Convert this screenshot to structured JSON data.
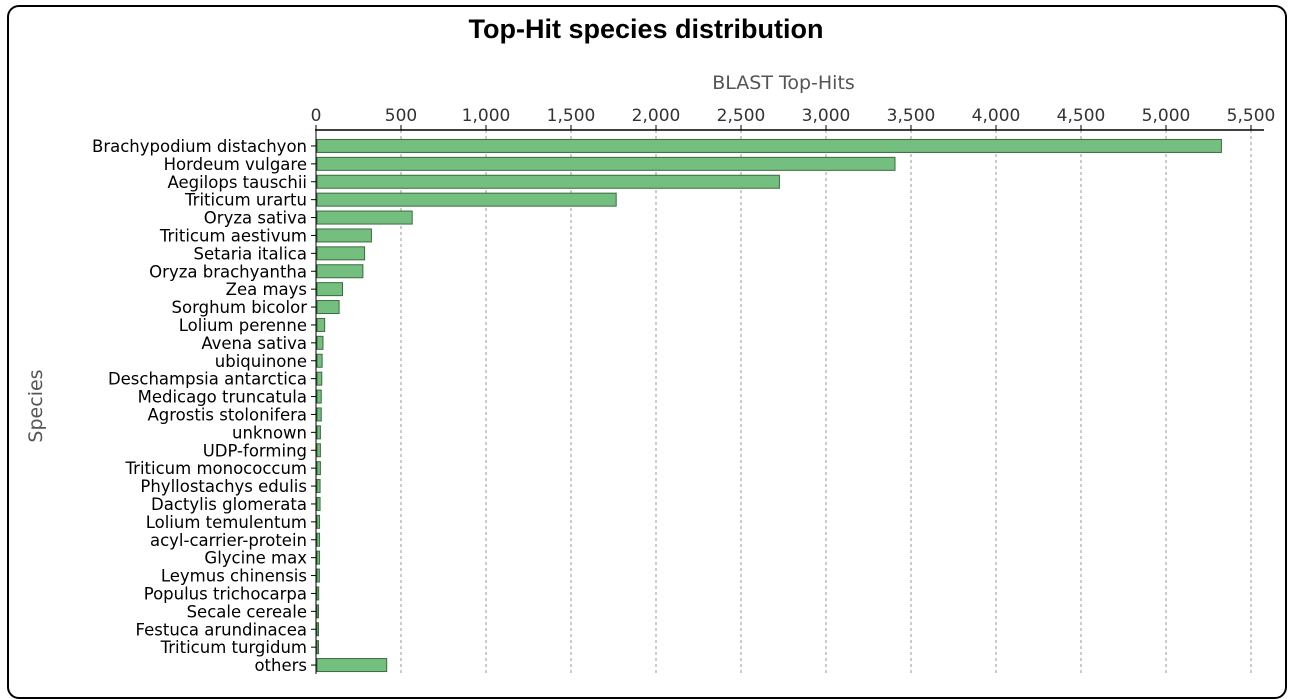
{
  "chart_data": {
    "type": "bar",
    "orientation": "horizontal",
    "title": "Top-Hit species distribution",
    "xlabel": "BLAST Top-Hits",
    "ylabel": "Species",
    "xlim": [
      0,
      5500
    ],
    "xticks": [
      0,
      500,
      1000,
      1500,
      2000,
      2500,
      3000,
      3500,
      4000,
      4500,
      5000,
      5500
    ],
    "xtick_labels": [
      "0",
      "500",
      "1,000",
      "1,500",
      "2,000",
      "2,500",
      "3,000",
      "3,500",
      "4,000",
      "4,500",
      "5,000",
      "5,500"
    ],
    "grid": "vertical dashed",
    "bar_color": "#74bf7f",
    "bar_edge_color": "#3a6b3f",
    "categories": [
      "Brachypodium distachyon",
      "Hordeum vulgare",
      "Aegilops tauschii",
      "Triticum urartu",
      "Oryza sativa",
      "Triticum aestivum",
      "Setaria italica",
      "Oryza brachyantha",
      "Zea mays",
      "Sorghum bicolor",
      "Lolium perenne",
      "Avena sativa",
      "ubiquinone",
      "Deschampsia antarctica",
      "Medicago truncatula",
      "Agrostis stolonifera",
      "unknown",
      "UDP-forming",
      "Triticum monococcum",
      "Phyllostachys edulis",
      "Dactylis glomerata",
      "Lolium temulentum",
      "acyl-carrier-protein",
      "Glycine max",
      "Leymus chinensis",
      "Populus trichocarpa",
      "Secale cereale",
      "Festuca arundinacea",
      "Triticum turgidum",
      "others"
    ],
    "values": [
      5320,
      3400,
      2720,
      1760,
      560,
      320,
      280,
      270,
      150,
      130,
      45,
      35,
      30,
      28,
      25,
      25,
      20,
      20,
      20,
      18,
      18,
      15,
      15,
      15,
      14,
      10,
      8,
      8,
      5,
      410
    ]
  }
}
